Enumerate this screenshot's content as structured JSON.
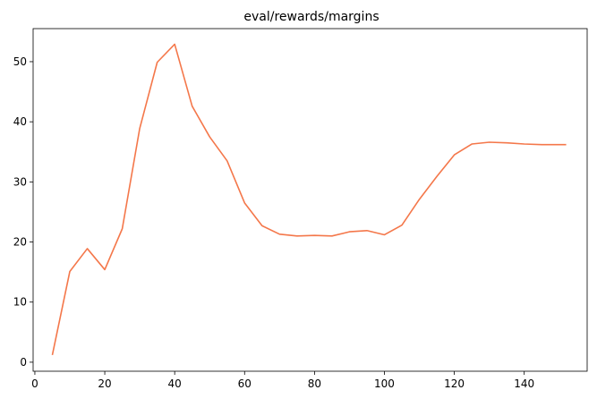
{
  "chart_data": {
    "type": "line",
    "title": "eval/rewards/margins",
    "xlabel": "",
    "ylabel": "",
    "xlim": [
      -0.5,
      158
    ],
    "ylim": [
      -1.5,
      55.5
    ],
    "xticks": [
      0,
      20,
      40,
      60,
      80,
      100,
      120,
      140
    ],
    "yticks": [
      0,
      10,
      20,
      30,
      40,
      50
    ],
    "grid": false,
    "series": [
      {
        "color": "#f4774a",
        "x": [
          5,
          10,
          15,
          20,
          25,
          30,
          35,
          40,
          45,
          50,
          55,
          60,
          65,
          70,
          75,
          80,
          85,
          90,
          95,
          100,
          105,
          110,
          115,
          120,
          125,
          130,
          135,
          140,
          145,
          152
        ],
        "y": [
          1.2,
          15.1,
          18.9,
          15.4,
          22.2,
          38.9,
          49.9,
          52.9,
          42.6,
          37.5,
          33.5,
          26.5,
          22.7,
          21.3,
          21.0,
          21.1,
          21.0,
          21.7,
          21.9,
          21.2,
          22.8,
          27.1,
          30.9,
          34.5,
          36.3,
          36.6,
          36.5,
          36.3,
          36.2,
          36.2
        ]
      }
    ]
  }
}
